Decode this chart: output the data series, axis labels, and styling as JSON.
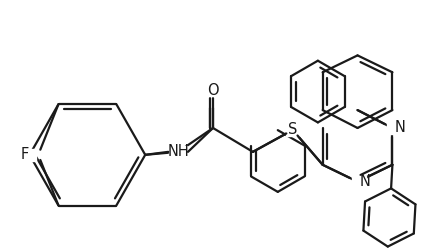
{
  "background_color": "#ffffff",
  "line_color": "#1a1a1a",
  "bond_width": 1.6,
  "font_size": 10.5,
  "figsize": [
    4.3,
    2.5
  ],
  "dpi": 100,
  "xlim": [
    0,
    10
  ],
  "ylim": [
    0,
    5.8
  ]
}
